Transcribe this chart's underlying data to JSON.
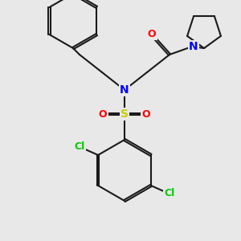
{
  "bg_color": "#e8e8e8",
  "bond_color": "#1a1a1a",
  "bond_width": 1.5,
  "atom_colors": {
    "N": "#0000ff",
    "O": "#ff0000",
    "S": "#cccc00",
    "Cl": "#00cc00",
    "C": "#1a1a1a"
  },
  "font_size": 9,
  "fig_size": [
    3.0,
    3.0
  ],
  "dpi": 100
}
